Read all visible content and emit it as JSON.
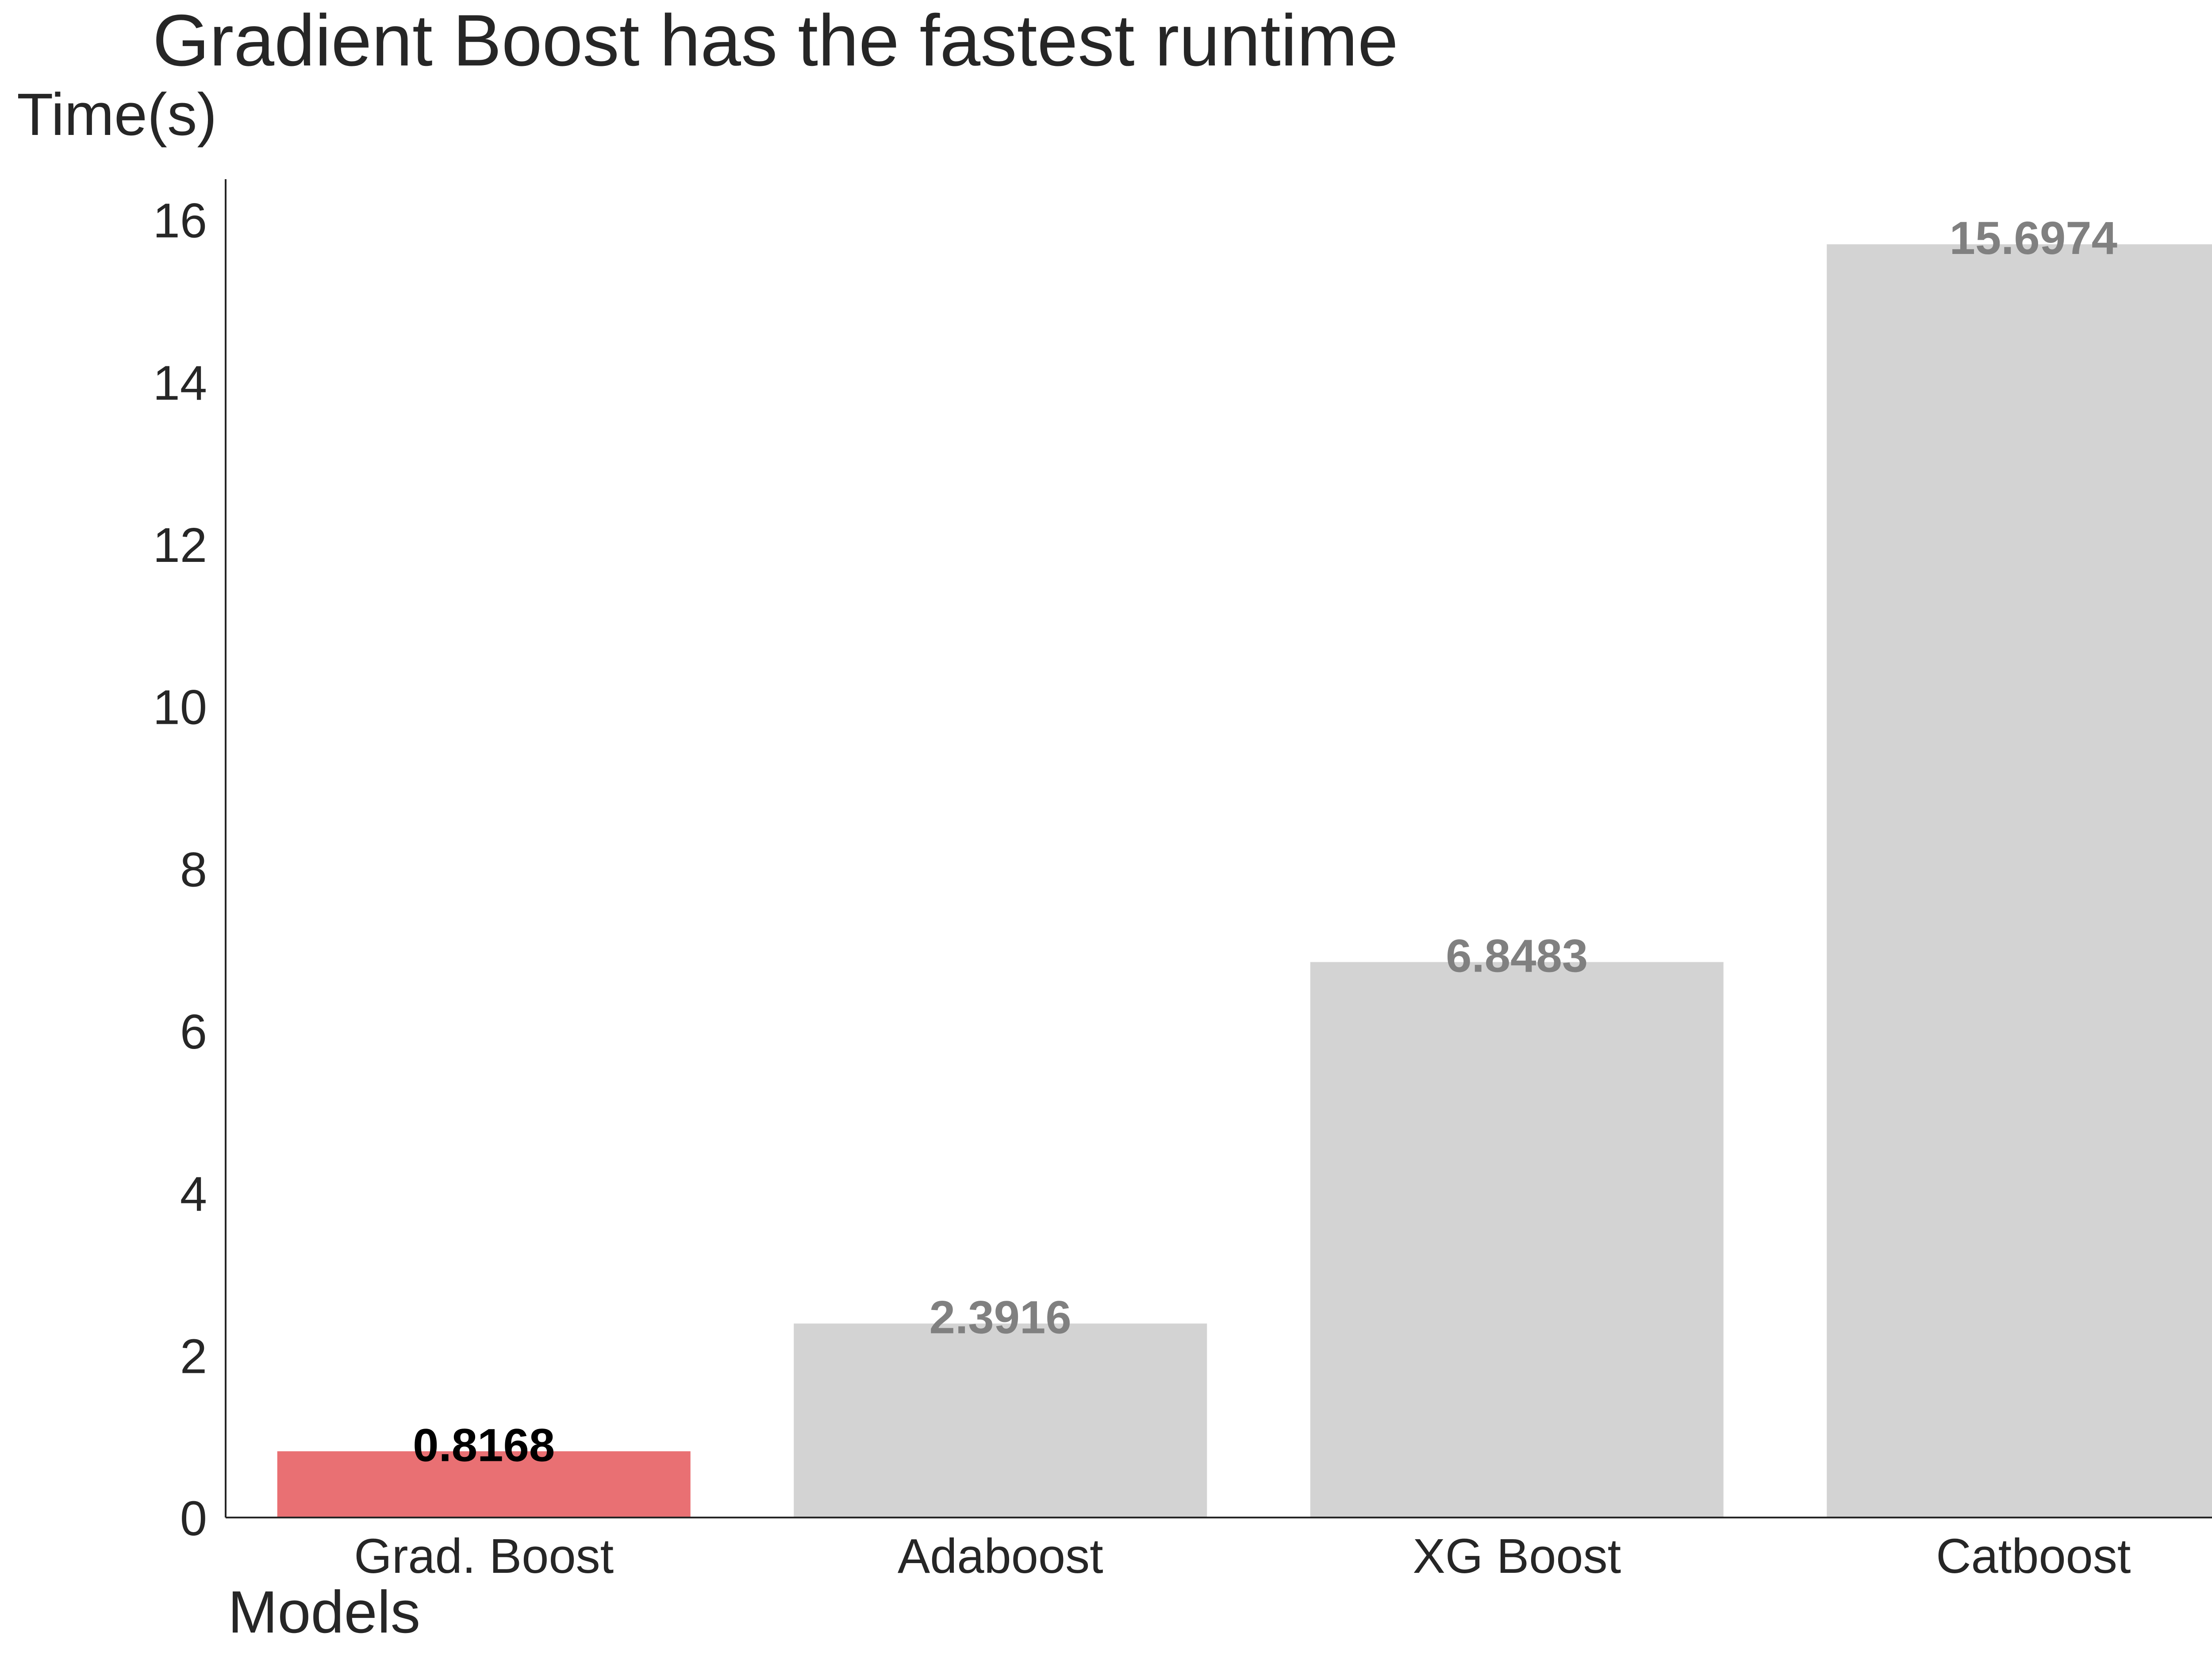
{
  "chart_data": {
    "type": "bar",
    "title": "Gradient Boost has the fastest runtime",
    "xlabel": "Models",
    "ylabel": "Time(s)",
    "categories": [
      "Grad. Boost",
      "Adaboost",
      "XG Boost",
      "Catboost"
    ],
    "values": [
      0.8168,
      2.3916,
      6.8483,
      15.6974
    ],
    "value_labels": [
      "0.8168",
      "2.3916",
      "6.8483",
      "15.6974"
    ],
    "ylim": [
      0,
      16.5
    ],
    "yticks": [
      0,
      2,
      4,
      6,
      8,
      10,
      12,
      14,
      16
    ],
    "ytick_labels": [
      "0",
      "2",
      "4",
      "6",
      "8",
      "10",
      "12",
      "14",
      "16"
    ],
    "grid": false,
    "highlight_index": 0,
    "colors": {
      "highlight_bar": "#e97073",
      "default_bar": "#d3d3d3",
      "highlight_label": "#000000",
      "default_label": "#808080",
      "axis": "#262626",
      "text": "#262626"
    }
  }
}
